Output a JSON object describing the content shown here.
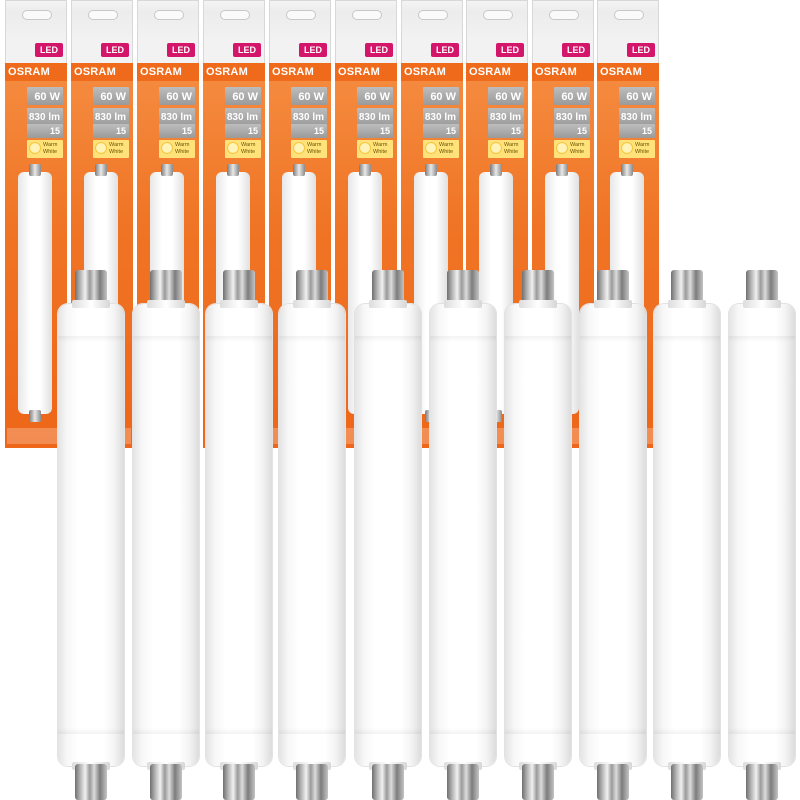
{
  "product": {
    "badge": "LED",
    "brand": "OSRAM",
    "wattage": "60 W",
    "lumens": "830 lm",
    "lifetime": "15 Years",
    "color_temperature": "Warm White"
  },
  "package_count": 10,
  "tube_count": 10,
  "colors": {
    "brand_orange": "#f06a1b",
    "led_badge": "#d4166b",
    "warm_white": "#ffe27a",
    "background": "#ffffff"
  }
}
